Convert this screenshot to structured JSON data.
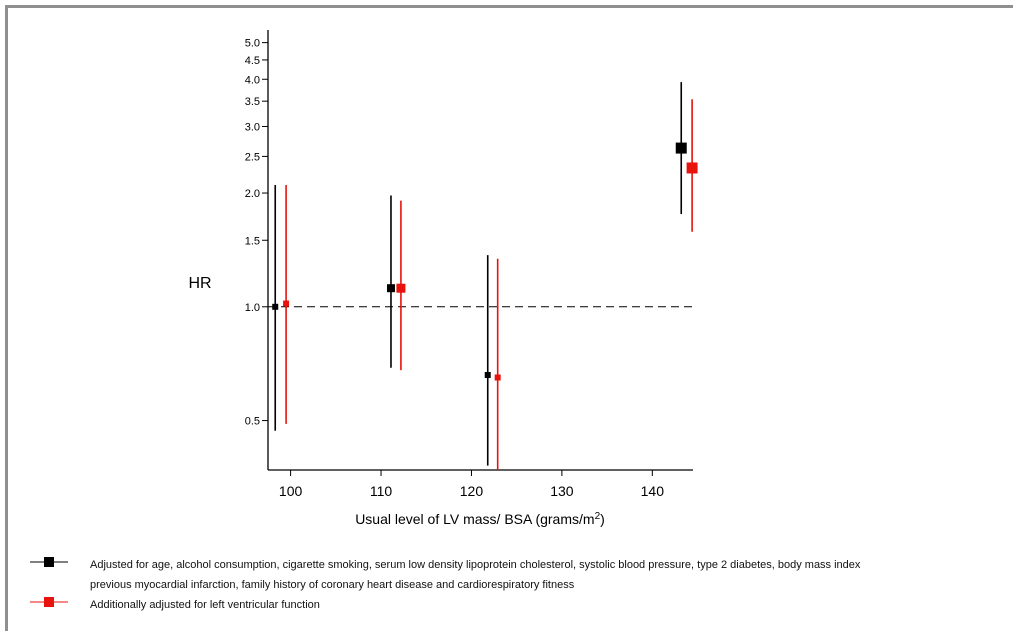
{
  "chart_data": {
    "type": "scatter",
    "subtype": "forest-plot-with-confidence-intervals",
    "xlabel": "Usual level of LV mass/ BSA (grams/m",
    "xlabel_superscript": "2",
    "xlabel_suffix": ")",
    "ylabel": "HR",
    "xlim": [
      97.5,
      144.5
    ],
    "ylim": [
      0.37,
      5.4
    ],
    "y_scale": "log",
    "x_ticks": [
      100,
      110,
      120,
      130,
      140
    ],
    "x_tick_labels": [
      "100",
      "110",
      "120",
      "130",
      "140"
    ],
    "y_ticks": [
      0.5,
      1.0,
      1.5,
      2.0,
      2.5,
      3.0,
      3.5,
      4.0,
      4.5,
      5.0
    ],
    "y_tick_labels": [
      "0.5",
      "1.0",
      "1.5",
      "2.0",
      "2.5",
      "3.0",
      "3.5",
      "4.0",
      "4.5",
      "5.0"
    ],
    "reference_line": 1.0,
    "grid": false,
    "series": [
      {
        "color": "#000000",
        "points": [
          {
            "x": 98.3,
            "hr": 1.0,
            "lo": 0.47,
            "hi": 2.1,
            "size": 6
          },
          {
            "x": 111.1,
            "hr": 1.12,
            "lo": 0.69,
            "hi": 1.97,
            "size": 8
          },
          {
            "x": 121.8,
            "hr": 0.66,
            "lo": 0.38,
            "hi": 1.37,
            "size": 6
          },
          {
            "x": 143.2,
            "hr": 2.63,
            "lo": 1.76,
            "hi": 3.93,
            "size": 11
          }
        ]
      },
      {
        "color": "#e8130c",
        "points": [
          {
            "x": 99.5,
            "hr": 1.02,
            "lo": 0.49,
            "hi": 2.1,
            "size": 6
          },
          {
            "x": 112.2,
            "hr": 1.12,
            "lo": 0.68,
            "hi": 1.91,
            "size": 9
          },
          {
            "x": 122.9,
            "hr": 0.65,
            "lo": 0.37,
            "hi": 1.34,
            "size": 6
          },
          {
            "x": 144.4,
            "hr": 2.33,
            "lo": 1.58,
            "hi": 3.54,
            "size": 11
          }
        ]
      }
    ]
  },
  "legend": {
    "items": [
      {
        "color": "#000000",
        "label_line1": "Adjusted for age, alcohol consumption, cigarette smoking, serum low density lipoprotein cholesterol, systolic blood pressure, type 2 diabetes, body mass index",
        "label_line2": "previous myocardial infarction, family history of coronary heart disease and cardiorespiratory fitness"
      },
      {
        "color": "#e8130c",
        "label_line1": "Additionally adjusted for left ventricular function"
      }
    ]
  }
}
